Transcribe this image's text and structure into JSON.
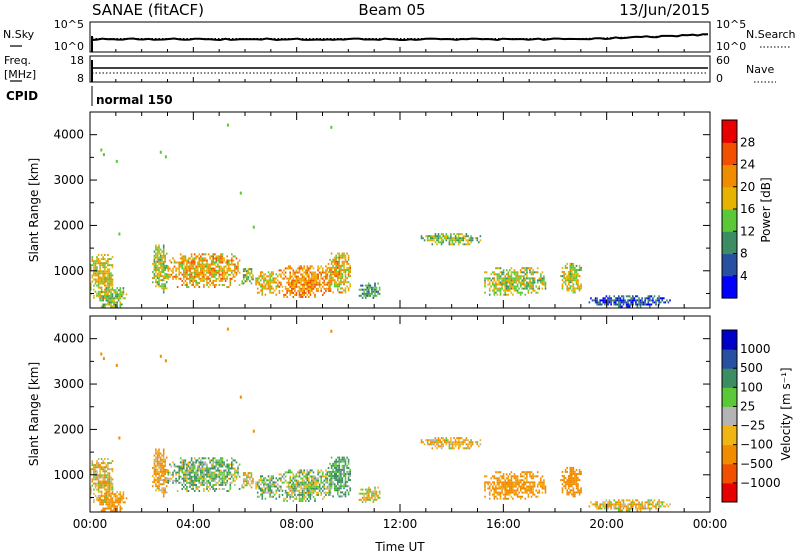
{
  "header": {
    "radar": "SANAE (fitACF)",
    "beam": "Beam 05",
    "date": "13/Jun/2015"
  },
  "panels": {
    "nsky": {
      "left_label": "N.Sky",
      "left_ticks": [
        "10^5",
        "10^0"
      ],
      "right_label": "N.Search",
      "right_ticks": [
        "10^5",
        "10^0"
      ]
    },
    "freq": {
      "left_label_1": "Freq.",
      "left_label_2": "[MHz]",
      "left_ticks": [
        "18",
        "8"
      ],
      "right_label": "Nave",
      "right_ticks": [
        "60",
        "0"
      ]
    },
    "cpid": {
      "label": "CPID",
      "value": "normal 150"
    }
  },
  "colors": {
    "power": [
      "#0000ff",
      "#2850a0",
      "#3c8c64",
      "#5ac837",
      "#e6b400",
      "#f08c00",
      "#f05000",
      "#e60000"
    ],
    "velocity": [
      "#e60000",
      "#f05000",
      "#f08c00",
      "#f0b414",
      "#b4b4b4",
      "#5ac837",
      "#3c8c64",
      "#2850a0",
      "#0000c8"
    ]
  },
  "chart_data": [
    {
      "type": "heatmap",
      "name": "power",
      "xlabel": "",
      "ylabel": "Slant Range [km]",
      "xlim": [
        0,
        24
      ],
      "ylim": [
        180,
        4500
      ],
      "y_ticks": [
        "1000",
        "2000",
        "3000",
        "4000"
      ],
      "colorbar_label": "Power [dB]",
      "colorbar_ticks": [
        "4",
        "8",
        "12",
        "16",
        "20",
        "24",
        "28"
      ],
      "colorbar_range": [
        0,
        32
      ]
    },
    {
      "type": "heatmap",
      "name": "velocity",
      "xlabel": "Time UT",
      "ylabel": "Slant Range [km]",
      "xlim": [
        0,
        24
      ],
      "ylim": [
        180,
        4500
      ],
      "x_ticks": [
        "00:00",
        "04:00",
        "08:00",
        "12:00",
        "16:00",
        "20:00",
        "00:00"
      ],
      "y_ticks": [
        "1000",
        "2000",
        "3000",
        "4000"
      ],
      "colorbar_label": "Velocity [m s⁻¹]",
      "colorbar_ticks": [
        "-1000",
        "-500",
        "-100",
        "-25",
        "25",
        "100",
        "500",
        "1000"
      ]
    }
  ],
  "echo_regions": [
    {
      "t0": 0.0,
      "t1": 0.9,
      "r0": 380,
      "r1": 1350,
      "power": 18,
      "vel": -60
    },
    {
      "t0": 0.3,
      "t1": 1.4,
      "r0": 190,
      "r1": 600,
      "power": 14,
      "vel": -200
    },
    {
      "t0": 2.4,
      "t1": 3.0,
      "r0": 500,
      "r1": 1550,
      "power": 16,
      "vel": -120
    },
    {
      "t0": 3.0,
      "t1": 5.8,
      "r0": 620,
      "r1": 1350,
      "power": 20,
      "vel": 80
    },
    {
      "t0": 5.8,
      "t1": 6.3,
      "r0": 700,
      "r1": 1050,
      "power": 14,
      "vel": -60
    },
    {
      "t0": 6.4,
      "t1": 7.3,
      "r0": 450,
      "r1": 950,
      "power": 18,
      "vel": 60
    },
    {
      "t0": 7.3,
      "t1": 9.3,
      "r0": 400,
      "r1": 1100,
      "power": 22,
      "vel": 40
    },
    {
      "t0": 9.2,
      "t1": 10.1,
      "r0": 500,
      "r1": 1400,
      "power": 19,
      "vel": 150
    },
    {
      "t0": 10.4,
      "t1": 11.2,
      "r0": 380,
      "r1": 700,
      "power": 10,
      "vel": -40
    },
    {
      "t0": 12.8,
      "t1": 15.1,
      "r0": 1560,
      "r1": 1800,
      "power": 14,
      "vel": -90
    },
    {
      "t0": 15.2,
      "t1": 17.6,
      "r0": 450,
      "r1": 1050,
      "power": 16,
      "vel": -200
    },
    {
      "t0": 18.2,
      "t1": 19.0,
      "r0": 500,
      "r1": 1150,
      "power": 17,
      "vel": -300
    },
    {
      "t0": 19.3,
      "t1": 22.5,
      "r0": 190,
      "r1": 420,
      "power": 6,
      "vel": -60
    }
  ]
}
